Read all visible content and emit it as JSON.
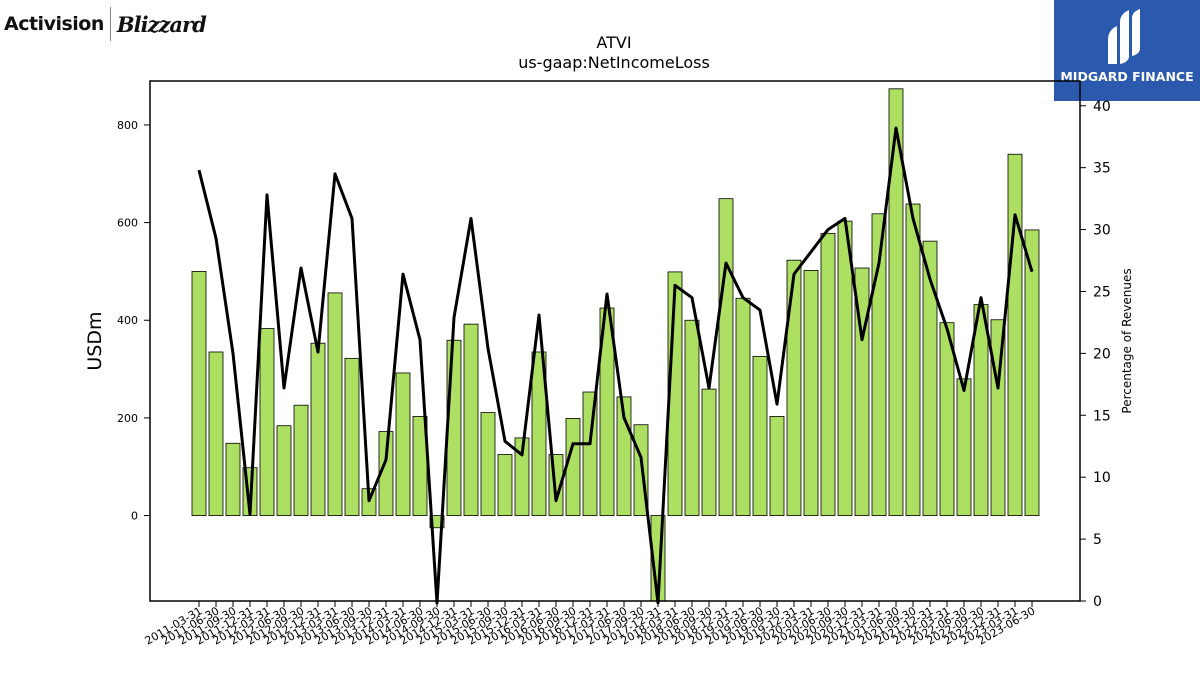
{
  "brands": {
    "left_logo_text_a": "Activision",
    "left_logo_text_b": "Blizzard",
    "right_logo_text": "MIDGARD FINANCE",
    "right_bg_color": "#2b59ad"
  },
  "chart_data": {
    "type": "bar",
    "title": "ATVI",
    "subtitle": "us-gaap:NetIncomeLoss",
    "ylabel": "USDm",
    "y2label": "Percentage of Revenues",
    "ylim": [
      -175,
      890
    ],
    "y2lim": [
      0,
      42
    ],
    "yticks": [
      0,
      200,
      400,
      600,
      800
    ],
    "y2ticks": [
      0,
      5,
      10,
      15,
      20,
      25,
      30,
      35,
      40
    ],
    "bar_color": "#addf62",
    "line_color": "#000000",
    "categories": [
      "2011-03-31",
      "2011-06-30",
      "2011-09-30",
      "2011-12-31",
      "2012-03-31",
      "2012-06-30",
      "2012-09-30",
      "2012-12-31",
      "2013-03-31",
      "2013-06-30",
      "2013-09-30",
      "2013-12-31",
      "2014-03-31",
      "2014-06-30",
      "2014-09-30",
      "2014-12-31",
      "2015-03-31",
      "2015-06-30",
      "2015-09-30",
      "2015-12-31",
      "2016-03-31",
      "2016-06-30",
      "2016-09-30",
      "2016-12-31",
      "2017-03-31",
      "2017-06-30",
      "2017-09-30",
      "2017-12-31",
      "2018-03-31",
      "2018-06-30",
      "2018-09-30",
      "2018-12-31",
      "2019-03-31",
      "2019-06-30",
      "2019-09-30",
      "2019-12-31",
      "2020-03-31",
      "2020-06-30",
      "2020-09-30",
      "2020-12-31",
      "2021-03-31",
      "2021-06-30",
      "2021-09-30",
      "2021-12-31",
      "2022-03-31",
      "2022-06-30",
      "2022-09-30",
      "2022-12-31",
      "2023-03-31",
      "2023-06-30"
    ],
    "series": [
      {
        "values": [
          500,
          335,
          148,
          98,
          383,
          184,
          226,
          353,
          456,
          322,
          55,
          172,
          292,
          203,
          -25,
          359,
          392,
          211,
          125,
          159,
          335,
          125,
          199,
          253,
          425,
          243,
          186,
          -175,
          499,
          400,
          259,
          649,
          445,
          326,
          203,
          523,
          502,
          578,
          603,
          507,
          618,
          874,
          638,
          562,
          395,
          280,
          432,
          401,
          740,
          585
        ]
      },
      {
        "axis": "right",
        "values": [
          34.8,
          29.3,
          20,
          7,
          32.8,
          17.2,
          26.9,
          20.1,
          34.5,
          30.9,
          8.1,
          11.4,
          26.4,
          21.1,
          -1,
          22.9,
          30.9,
          20.4,
          12.9,
          11.8,
          23.1,
          8.1,
          12.7,
          12.7,
          24.8,
          14.8,
          11.6,
          -1,
          25.5,
          24.5,
          17.2,
          27.3,
          24.5,
          23.5,
          15.9,
          26.4,
          28.2,
          30,
          30.9,
          21.1,
          27.3,
          38.2,
          30.9,
          26,
          22,
          17,
          24.5,
          17.2,
          31.2,
          26.6
        ]
      }
    ]
  }
}
